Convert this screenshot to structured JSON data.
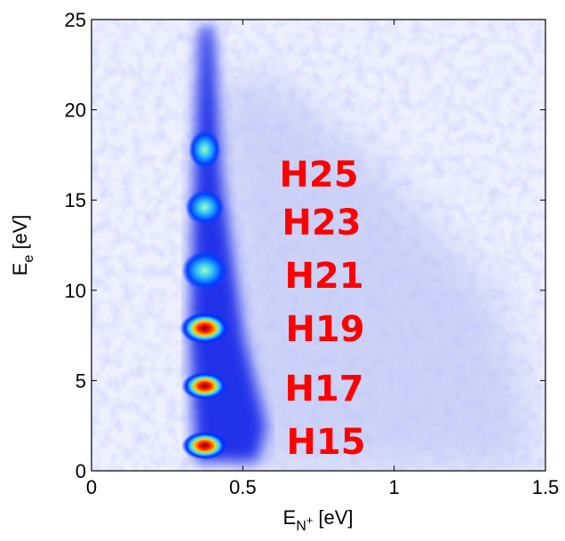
{
  "chart_data": {
    "type": "heatmap",
    "xlabel": {
      "main": "E",
      "sub": "N",
      "sup": "+",
      "unit": "[eV]"
    },
    "ylabel": {
      "main": "E",
      "sub": "e",
      "unit": "[eV]"
    },
    "xlim": [
      0,
      1.5
    ],
    "ylim": [
      0,
      25
    ],
    "xticks": [
      0,
      0.5,
      1,
      1.5
    ],
    "yticks": [
      0,
      5,
      10,
      15,
      20,
      25
    ],
    "peaks": {
      "x": [
        0.38,
        0.38,
        0.38,
        0.38,
        0.38,
        0.38
      ],
      "y": [
        1.4,
        4.7,
        7.9,
        11.1,
        14.6,
        17.8
      ]
    },
    "annotations": [
      "H15",
      "H17",
      "H19",
      "H21",
      "H23",
      "H25"
    ]
  }
}
